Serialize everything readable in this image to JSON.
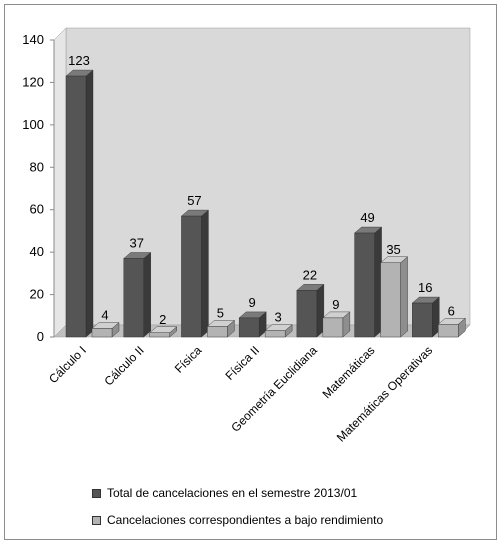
{
  "chart_data": {
    "type": "bar",
    "categories": [
      "Cálculo I",
      "Cálculo II",
      "Física",
      "Física II",
      "Geometría Euclidiana",
      "Matemáticas",
      "Matemáticas Operativas"
    ],
    "series": [
      {
        "name": "Total de cancelaciones en el semestre 2013/01",
        "values": [
          123,
          37,
          57,
          9,
          22,
          49,
          16
        ]
      },
      {
        "name": "Cancelaciones correspondientes a bajo rendimiento",
        "values": [
          4,
          2,
          5,
          3,
          9,
          35,
          6
        ]
      }
    ],
    "ylim": [
      0,
      140
    ],
    "yticks": [
      0,
      20,
      40,
      60,
      80,
      100,
      120,
      140
    ],
    "legend_position": "bottom",
    "colors": {
      "series1_front": "#555555",
      "series1_side": "#3a3a3a",
      "series1_top": "#7a7a7a",
      "series2_front": "#b3b3b3",
      "series2_side": "#8e8e8e",
      "series2_top": "#d0d0d0",
      "back_wall": "#d9d9d9",
      "floor": "#bfbfbf"
    }
  }
}
